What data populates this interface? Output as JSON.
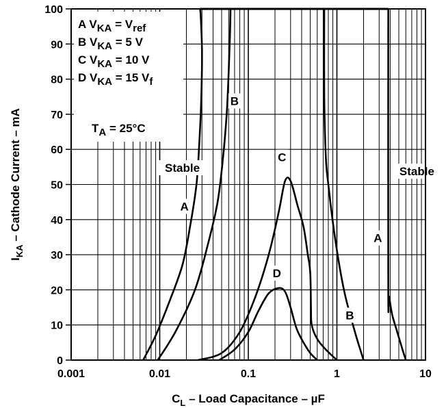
{
  "chart_data": {
    "type": "line",
    "xscale": "log",
    "xlim": [
      0.001,
      10
    ],
    "ylim": [
      0,
      100
    ],
    "grid": true,
    "xlabel": {
      "main": "C",
      "sub": "L",
      "rest": " – Load Capacitance – µF"
    },
    "ylabel": {
      "main": "I",
      "sub": "KA",
      "rest": " – Cathode Current – mA"
    },
    "xticks": [
      {
        "value": 0.001,
        "label": "0.001"
      },
      {
        "value": 0.01,
        "label": "0.01"
      },
      {
        "value": 0.1,
        "label": "0.1"
      },
      {
        "value": 1,
        "label": "1"
      },
      {
        "value": 10,
        "label": "10"
      }
    ],
    "yticks": [
      {
        "value": 0,
        "label": "0"
      },
      {
        "value": 10,
        "label": "10"
      },
      {
        "value": 20,
        "label": "20"
      },
      {
        "value": 30,
        "label": "30"
      },
      {
        "value": 40,
        "label": "40"
      },
      {
        "value": 50,
        "label": "50"
      },
      {
        "value": 60,
        "label": "60"
      },
      {
        "value": 70,
        "label": "70"
      },
      {
        "value": 80,
        "label": "80"
      },
      {
        "value": 90,
        "label": "90"
      },
      {
        "value": 100,
        "label": "100"
      }
    ],
    "legend": {
      "placement": "top-left",
      "entries": [
        {
          "letter": "A",
          "pre": " V",
          "sub": "KA",
          "post": " = V",
          "post_sub": "ref"
        },
        {
          "letter": "B",
          "pre": " V",
          "sub": "KA",
          "post": " = 5 V",
          "post_sub": ""
        },
        {
          "letter": "C",
          "pre": " V",
          "sub": "KA",
          "post": " = 10 V",
          "post_sub": ""
        },
        {
          "letter": "D",
          "pre": " V",
          "sub": "KA",
          "post": " = 15 V",
          "post_sub": "f"
        }
      ],
      "condition": {
        "pre": "T",
        "sub": "A",
        "post": " = 25°C"
      }
    },
    "series": [
      {
        "name": "A",
        "segments": [
          {
            "x": [
              0.0065,
              0.009,
              0.013,
              0.018,
              0.022,
              0.026,
              0.028,
              0.0295,
              0.03,
              0.029,
              0.0285
            ],
            "y": [
              0,
              7,
              17,
              27,
              38,
              50,
              62,
              75,
              88,
              98,
              100
            ]
          },
          {
            "x": [
              3.8,
              3.8,
              3.9,
              4.2,
              4.8,
              5.5,
              6.0
            ],
            "y": [
              100,
              20,
              18,
              13,
              8,
              3,
              0
            ]
          }
        ]
      },
      {
        "name": "B",
        "segments": [
          {
            "x": [
              0.0095,
              0.015,
              0.025,
              0.035,
              0.045,
              0.052,
              0.057,
              0.06,
              0.062,
              0.063
            ],
            "y": [
              0,
              8,
              20,
              33,
              45,
              58,
              70,
              82,
              92,
              100
            ]
          },
          {
            "x": [
              0.72,
              0.72,
              0.75,
              0.8,
              0.95,
              1.2,
              1.6,
              2.0
            ],
            "y": [
              100,
              75,
              58,
              50,
              35,
              20,
              8,
              0
            ]
          }
        ]
      },
      {
        "name": "C",
        "segments": [
          {
            "x": [
              0.027,
              0.05,
              0.08,
              0.12,
              0.17,
              0.22,
              0.26,
              0.3,
              0.36,
              0.42,
              0.47,
              0.5,
              0.51,
              0.52,
              0.6,
              0.75,
              1.0
            ],
            "y": [
              0,
              2,
              8,
              18,
              30,
              42,
              51,
              51,
              44,
              38,
              30,
              25,
              15,
              10,
              6,
              3,
              0
            ]
          }
        ]
      },
      {
        "name": "D",
        "segments": [
          {
            "x": [
              0.047,
              0.07,
              0.1,
              0.13,
              0.17,
              0.22,
              0.26,
              0.3,
              0.35,
              0.42,
              0.5,
              0.6
            ],
            "y": [
              0,
              3,
              8,
              14,
              19,
              20.5,
              19.5,
              15,
              9,
              5,
              2,
              0
            ]
          }
        ]
      }
    ],
    "annotations": [
      {
        "text": "Stable",
        "x": 0.018,
        "y": 54
      },
      {
        "text": "Stable",
        "x": 8.0,
        "y": 53
      },
      {
        "text": "A",
        "x": 0.019,
        "y": 43
      },
      {
        "text": "A",
        "x": 2.9,
        "y": 34
      },
      {
        "text": "B",
        "x": 0.07,
        "y": 73
      },
      {
        "text": "B",
        "x": 1.4,
        "y": 12
      },
      {
        "text": "C",
        "x": 0.24,
        "y": 57
      },
      {
        "text": "D",
        "x": 0.21,
        "y": 24
      }
    ]
  }
}
